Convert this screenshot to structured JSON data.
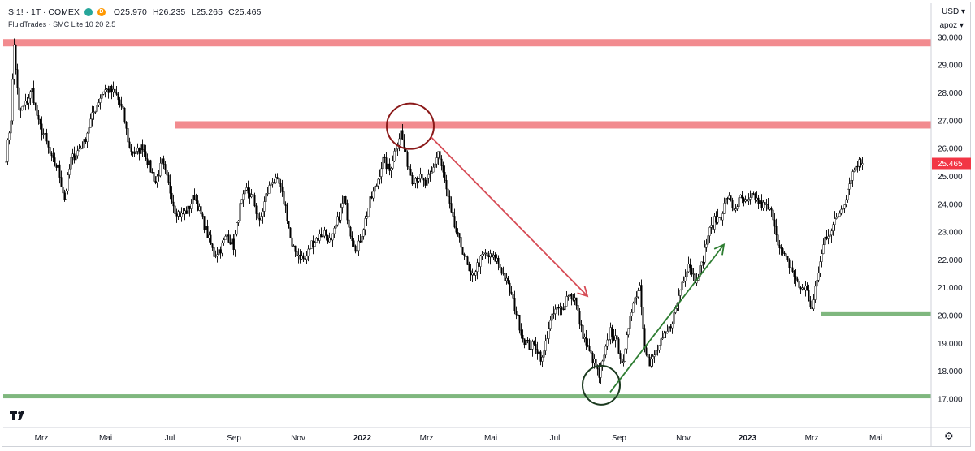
{
  "legend": {
    "symbol": "SI1! · 1T · COMEX",
    "open": "O25.970",
    "high": "H26.235",
    "low": "L25.265",
    "close": "C25.465",
    "indicator": "FluidTrades · SMC Lite 10 20 2.5",
    "badge_delayed": "D"
  },
  "price_scale": {
    "currency": "USD",
    "unit": "apoz",
    "last_price_label": "25.465",
    "last_price_color": "#f23645"
  },
  "colors": {
    "up_candle": "#ffffff",
    "down_candle": "#000000",
    "wick": "#000000",
    "resistance": "#f28b8f",
    "support": "#7fb77e",
    "red_arrow": "#d64b55",
    "green_arrow": "#2e7d32",
    "red_circle": "#8b1a1a",
    "green_circle": "#1b3a1f",
    "grid": "#ffffff",
    "axis_text": "#131722"
  },
  "chart_data": {
    "type": "candlestick",
    "title": "",
    "xlabel": "",
    "ylabel": "",
    "ylim": [
      16.0,
      31.2
    ],
    "y_ticks": [
      "30.000",
      "29.000",
      "28.000",
      "27.000",
      "26.000",
      "25.000",
      "24.000",
      "23.000",
      "22.000",
      "21.000",
      "20.000",
      "19.000",
      "18.000",
      "17.000"
    ],
    "x_ticks": [
      "Mrz",
      "Mai",
      "Jul",
      "Sep",
      "Nov",
      "2022",
      "Mrz",
      "Mai",
      "Jul",
      "Sep",
      "Nov",
      "2023",
      "Mrz",
      "Mai"
    ],
    "close_path": [
      [
        0,
        25.7
      ],
      [
        3,
        27.1
      ],
      [
        5,
        29.7
      ],
      [
        8,
        27.3
      ],
      [
        12,
        27.6
      ],
      [
        16,
        28.1
      ],
      [
        20,
        26.9
      ],
      [
        24,
        26.4
      ],
      [
        28,
        25.6
      ],
      [
        32,
        25.3
      ],
      [
        36,
        24.2
      ],
      [
        40,
        25.6
      ],
      [
        44,
        25.9
      ],
      [
        48,
        26.2
      ],
      [
        52,
        27.0
      ],
      [
        56,
        27.6
      ],
      [
        60,
        28.1
      ],
      [
        64,
        28.1
      ],
      [
        68,
        27.9
      ],
      [
        72,
        27.3
      ],
      [
        76,
        26.0
      ],
      [
        80,
        25.8
      ],
      [
        84,
        26.1
      ],
      [
        88,
        25.4
      ],
      [
        92,
        24.8
      ],
      [
        96,
        25.5
      ],
      [
        100,
        24.7
      ],
      [
        104,
        23.8
      ],
      [
        108,
        23.6
      ],
      [
        112,
        23.8
      ],
      [
        116,
        24.3
      ],
      [
        120,
        23.6
      ],
      [
        124,
        22.9
      ],
      [
        128,
        22.2
      ],
      [
        132,
        22.4
      ],
      [
        136,
        22.9
      ],
      [
        140,
        22.5
      ],
      [
        144,
        23.9
      ],
      [
        148,
        24.5
      ],
      [
        152,
        24.2
      ],
      [
        156,
        23.3
      ],
      [
        160,
        24.3
      ],
      [
        164,
        24.9
      ],
      [
        168,
        24.7
      ],
      [
        172,
        23.9
      ],
      [
        176,
        22.4
      ],
      [
        180,
        22.2
      ],
      [
        184,
        22.0
      ],
      [
        188,
        22.6
      ],
      [
        192,
        22.8
      ],
      [
        196,
        23.0
      ],
      [
        200,
        22.6
      ],
      [
        204,
        23.4
      ],
      [
        208,
        24.2
      ],
      [
        212,
        23.0
      ],
      [
        216,
        22.3
      ],
      [
        220,
        23.2
      ],
      [
        224,
        24.1
      ],
      [
        228,
        24.7
      ],
      [
        232,
        25.6
      ],
      [
        236,
        25.2
      ],
      [
        240,
        26.1
      ],
      [
        243,
        26.6
      ],
      [
        246,
        25.7
      ],
      [
        250,
        24.9
      ],
      [
        254,
        25.0
      ],
      [
        258,
        24.7
      ],
      [
        262,
        25.1
      ],
      [
        266,
        25.9
      ],
      [
        270,
        24.8
      ],
      [
        274,
        23.6
      ],
      [
        278,
        22.8
      ],
      [
        282,
        22.2
      ],
      [
        286,
        21.3
      ],
      [
        290,
        21.8
      ],
      [
        294,
        22.2
      ],
      [
        298,
        22.1
      ],
      [
        302,
        22.0
      ],
      [
        306,
        21.5
      ],
      [
        310,
        20.9
      ],
      [
        314,
        20.1
      ],
      [
        318,
        19.2
      ],
      [
        322,
        18.9
      ],
      [
        326,
        18.9
      ],
      [
        330,
        18.4
      ],
      [
        334,
        19.6
      ],
      [
        338,
        20.2
      ],
      [
        342,
        20.2
      ],
      [
        346,
        20.8
      ],
      [
        350,
        20.6
      ],
      [
        354,
        19.5
      ],
      [
        358,
        18.8
      ],
      [
        362,
        18.3
      ],
      [
        365,
        17.8
      ],
      [
        368,
        18.5
      ],
      [
        372,
        19.5
      ],
      [
        376,
        19.0
      ],
      [
        380,
        18.2
      ],
      [
        384,
        20.1
      ],
      [
        388,
        20.8
      ],
      [
        390,
        21.1
      ],
      [
        393,
        19.0
      ],
      [
        396,
        18.2
      ],
      [
        400,
        18.7
      ],
      [
        404,
        19.1
      ],
      [
        408,
        19.5
      ],
      [
        412,
        20.2
      ],
      [
        416,
        21.2
      ],
      [
        420,
        21.9
      ],
      [
        424,
        21.3
      ],
      [
        428,
        21.8
      ],
      [
        432,
        22.9
      ],
      [
        436,
        23.4
      ],
      [
        440,
        23.6
      ],
      [
        444,
        24.3
      ],
      [
        448,
        23.8
      ],
      [
        452,
        24.2
      ],
      [
        456,
        24.0
      ],
      [
        460,
        24.3
      ],
      [
        464,
        24.0
      ],
      [
        468,
        23.9
      ],
      [
        472,
        23.6
      ],
      [
        476,
        22.4
      ],
      [
        480,
        22.0
      ],
      [
        484,
        21.6
      ],
      [
        488,
        21.0
      ],
      [
        492,
        21.0
      ],
      [
        496,
        20.2
      ],
      [
        500,
        21.6
      ],
      [
        504,
        22.8
      ],
      [
        508,
        23.1
      ],
      [
        512,
        23.6
      ],
      [
        516,
        24.1
      ],
      [
        520,
        25.0
      ],
      [
        524,
        25.5
      ],
      [
        527,
        25.465
      ]
    ],
    "last_bar_index": 527,
    "first_month_index_offset": 22,
    "bars_per_month": 39.5,
    "annotations": {
      "resistance_1": {
        "value": 29.8,
        "from_bar": 0,
        "to_bar": 555
      },
      "resistance_2": {
        "value": 26.85,
        "from_bar": 104,
        "to_bar": 555
      },
      "support_1": {
        "value": 17.1,
        "from_bar": 0,
        "to_bar": 555
      },
      "support_2": {
        "value": 20.05,
        "from_bar": 500,
        "to_bar": 555
      },
      "red_circle": {
        "bar": 248,
        "value": 26.8
      },
      "green_circle": {
        "bar": 366,
        "value": 17.5
      },
      "red_arrow": {
        "from": [
          262,
          26.4
        ],
        "to": [
          358,
          20.7
        ]
      },
      "green_arrow": {
        "from": [
          372,
          17.25
        ],
        "to": [
          442,
          22.55
        ]
      }
    }
  }
}
